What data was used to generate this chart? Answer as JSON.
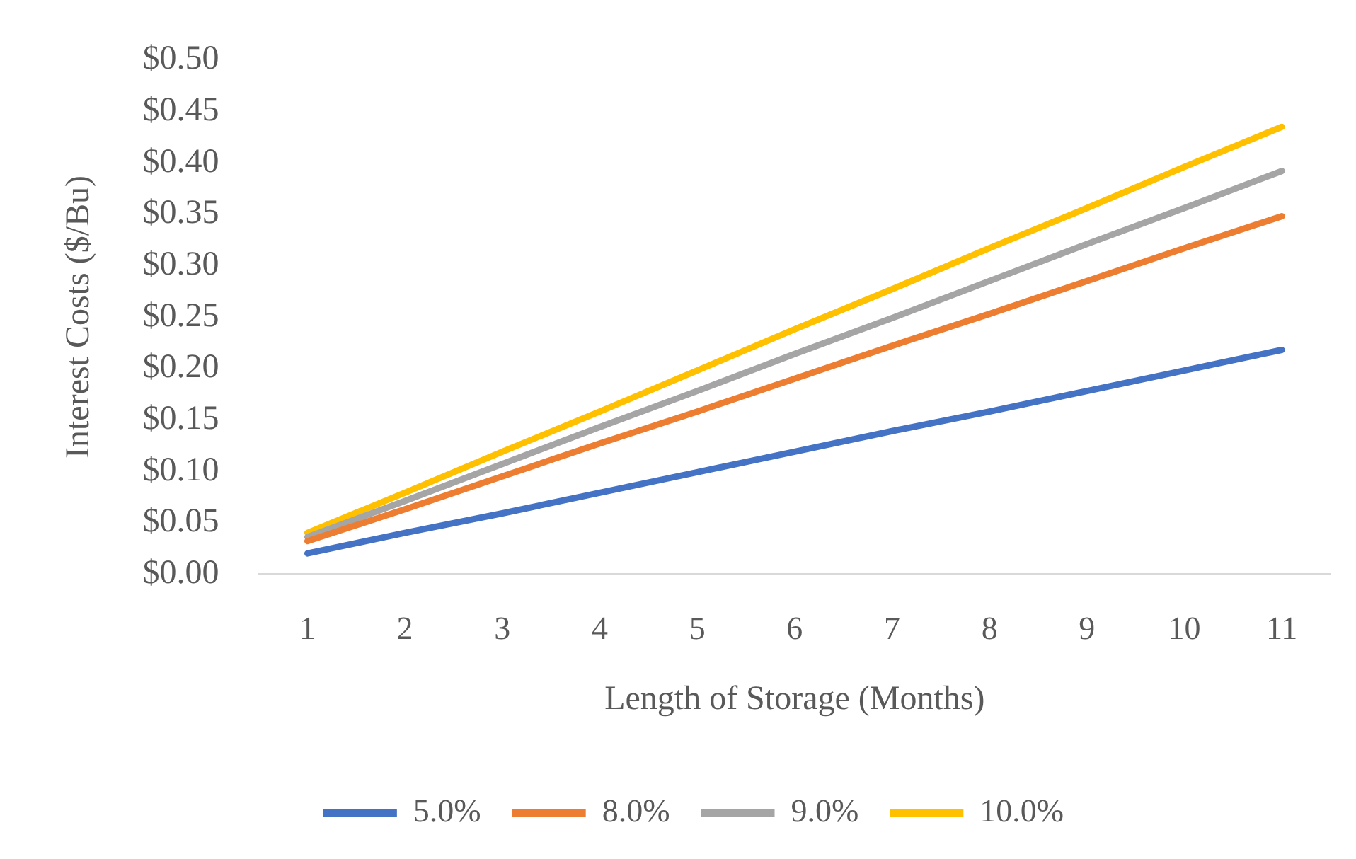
{
  "chart_data": {
    "type": "line",
    "xlabel": "Length of Storage (Months)",
    "ylabel": "Interest Costs ($/Bu)",
    "categories": [
      "1",
      "2",
      "3",
      "4",
      "5",
      "6",
      "7",
      "8",
      "9",
      "10",
      "11"
    ],
    "series": [
      {
        "name": "5.0%",
        "color": "#4472c4",
        "values": [
          0.02,
          0.04,
          0.059,
          0.079,
          0.099,
          0.119,
          0.139,
          0.158,
          0.178,
          0.198,
          0.218
        ]
      },
      {
        "name": "8.0%",
        "color": "#ed7d31",
        "values": [
          0.032,
          0.063,
          0.095,
          0.127,
          0.158,
          0.19,
          0.222,
          0.253,
          0.285,
          0.317,
          0.348
        ]
      },
      {
        "name": "9.0%",
        "color": "#a5a5a5",
        "values": [
          0.036,
          0.071,
          0.107,
          0.143,
          0.178,
          0.214,
          0.249,
          0.285,
          0.321,
          0.356,
          0.392
        ]
      },
      {
        "name": "10.0%",
        "color": "#ffc000",
        "values": [
          0.04,
          0.079,
          0.119,
          0.158,
          0.198,
          0.238,
          0.277,
          0.317,
          0.356,
          0.396,
          0.435
        ]
      }
    ],
    "ylim": [
      0,
      0.5
    ],
    "yticks": [
      {
        "value": 0,
        "label": "$0.00"
      },
      {
        "value": 0.05,
        "label": "$0.05"
      },
      {
        "value": 0.1,
        "label": "$0.10"
      },
      {
        "value": 0.15,
        "label": "$0.15"
      },
      {
        "value": 0.2,
        "label": "$0.20"
      },
      {
        "value": 0.25,
        "label": "$0.25"
      },
      {
        "value": 0.3,
        "label": "$0.30"
      },
      {
        "value": 0.35,
        "label": "$0.35"
      },
      {
        "value": 0.4,
        "label": "$0.40"
      },
      {
        "value": 0.45,
        "label": "$0.45"
      },
      {
        "value": 0.5,
        "label": "$0.50"
      }
    ],
    "grid": false,
    "legend": "bottom",
    "marker": "none",
    "line_style": "solid"
  }
}
